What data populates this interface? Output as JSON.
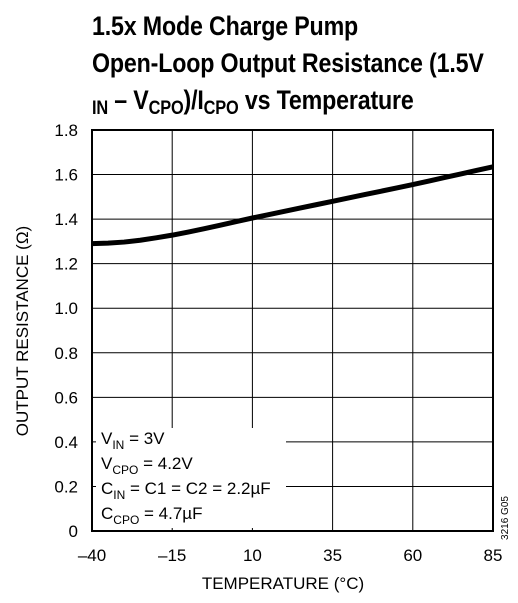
{
  "title": {
    "line1": "1.5x Mode Charge Pump",
    "line2": "Open-Loop Output Resistance (1.5V",
    "line3_sub_in": "IN",
    "line3_dash": " – V",
    "line3_sub_cpo": "CPO",
    "line3_mid": ")/I",
    "line3_sub_cpo2": "CPO",
    "line3_end": " vs Temperature"
  },
  "chart_data": {
    "type": "line",
    "title": "1.5x Mode Charge Pump Open-Loop Output Resistance (1.5VIN – VCPO)/ICPO vs Temperature",
    "xlabel": "TEMPERATURE (°C)",
    "ylabel": "OUTPUT RESISTANCE (Ω)",
    "xlim": [
      -40,
      85
    ],
    "ylim": [
      0,
      1.8
    ],
    "x_ticks": [
      -40,
      -15,
      10,
      35,
      60,
      85
    ],
    "x_tick_labels": [
      "–40",
      "–15",
      "10",
      "35",
      "60",
      "85"
    ],
    "y_ticks": [
      0,
      0.2,
      0.4,
      0.6,
      0.8,
      1.0,
      1.2,
      1.4,
      1.6,
      1.8
    ],
    "y_tick_labels": [
      "0",
      "0.2",
      "0.4",
      "0.6",
      "0.8",
      "1.0",
      "1.2",
      "1.4",
      "1.6",
      "1.8"
    ],
    "grid": true,
    "series": [
      {
        "x": [
          -40,
          -35,
          -30,
          -25,
          -20,
          -15,
          -10,
          -5,
          0,
          5,
          10,
          15,
          20,
          25,
          30,
          35,
          40,
          45,
          50,
          55,
          60,
          65,
          70,
          75,
          80,
          85
        ],
        "y": [
          1.29,
          1.292,
          1.297,
          1.305,
          1.316,
          1.328,
          1.342,
          1.357,
          1.373,
          1.389,
          1.405,
          1.42,
          1.435,
          1.45,
          1.465,
          1.48,
          1.495,
          1.51,
          1.525,
          1.54,
          1.555,
          1.571,
          1.587,
          1.603,
          1.619,
          1.635
        ]
      }
    ]
  },
  "legend": {
    "line1_v": "V",
    "line1_sub": "IN",
    "line1_val": " = 3V",
    "line2_v": "V",
    "line2_sub": "CPO",
    "line2_val": " = 4.2V",
    "line3_c": "C",
    "line3_sub": "IN",
    "line3_val": " = C1 = C2 = 2.2µF",
    "line4_c": "C",
    "line4_sub": "CPO",
    "line4_val": " = 4.7µF"
  },
  "figure_code": "3216 G05",
  "colors": {
    "line": "#000000",
    "grid": "#000000",
    "background": "#ffffff"
  }
}
